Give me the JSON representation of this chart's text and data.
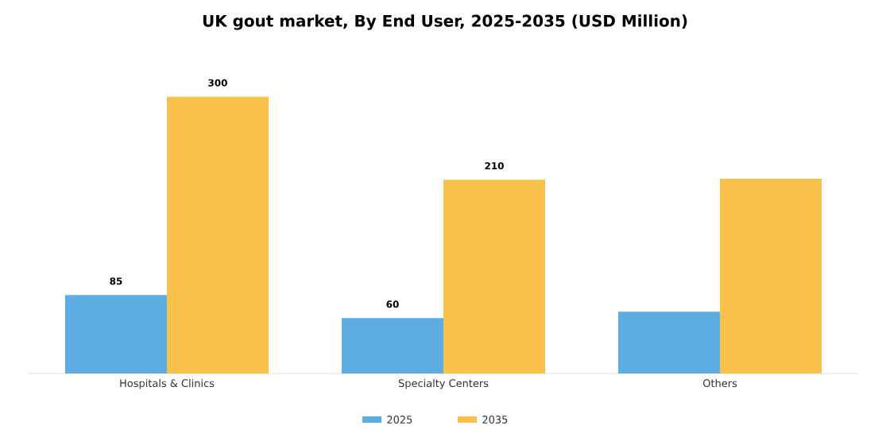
{
  "chart_data": {
    "type": "bar",
    "title": "UK gout market, By End User, 2025-2035 (USD Million)",
    "categories": [
      "Hospitals & Clinics",
      "Specialty Centers",
      "Others"
    ],
    "series": [
      {
        "name": "2025",
        "color": "#5dade2",
        "values": [
          85,
          60,
          67
        ],
        "value_labels": [
          "85",
          "60",
          null
        ]
      },
      {
        "name": "2035",
        "color": "#f7c14a",
        "values": [
          300,
          210,
          211
        ],
        "value_labels": [
          "300",
          "210",
          null
        ]
      }
    ],
    "legend": "bottom"
  }
}
